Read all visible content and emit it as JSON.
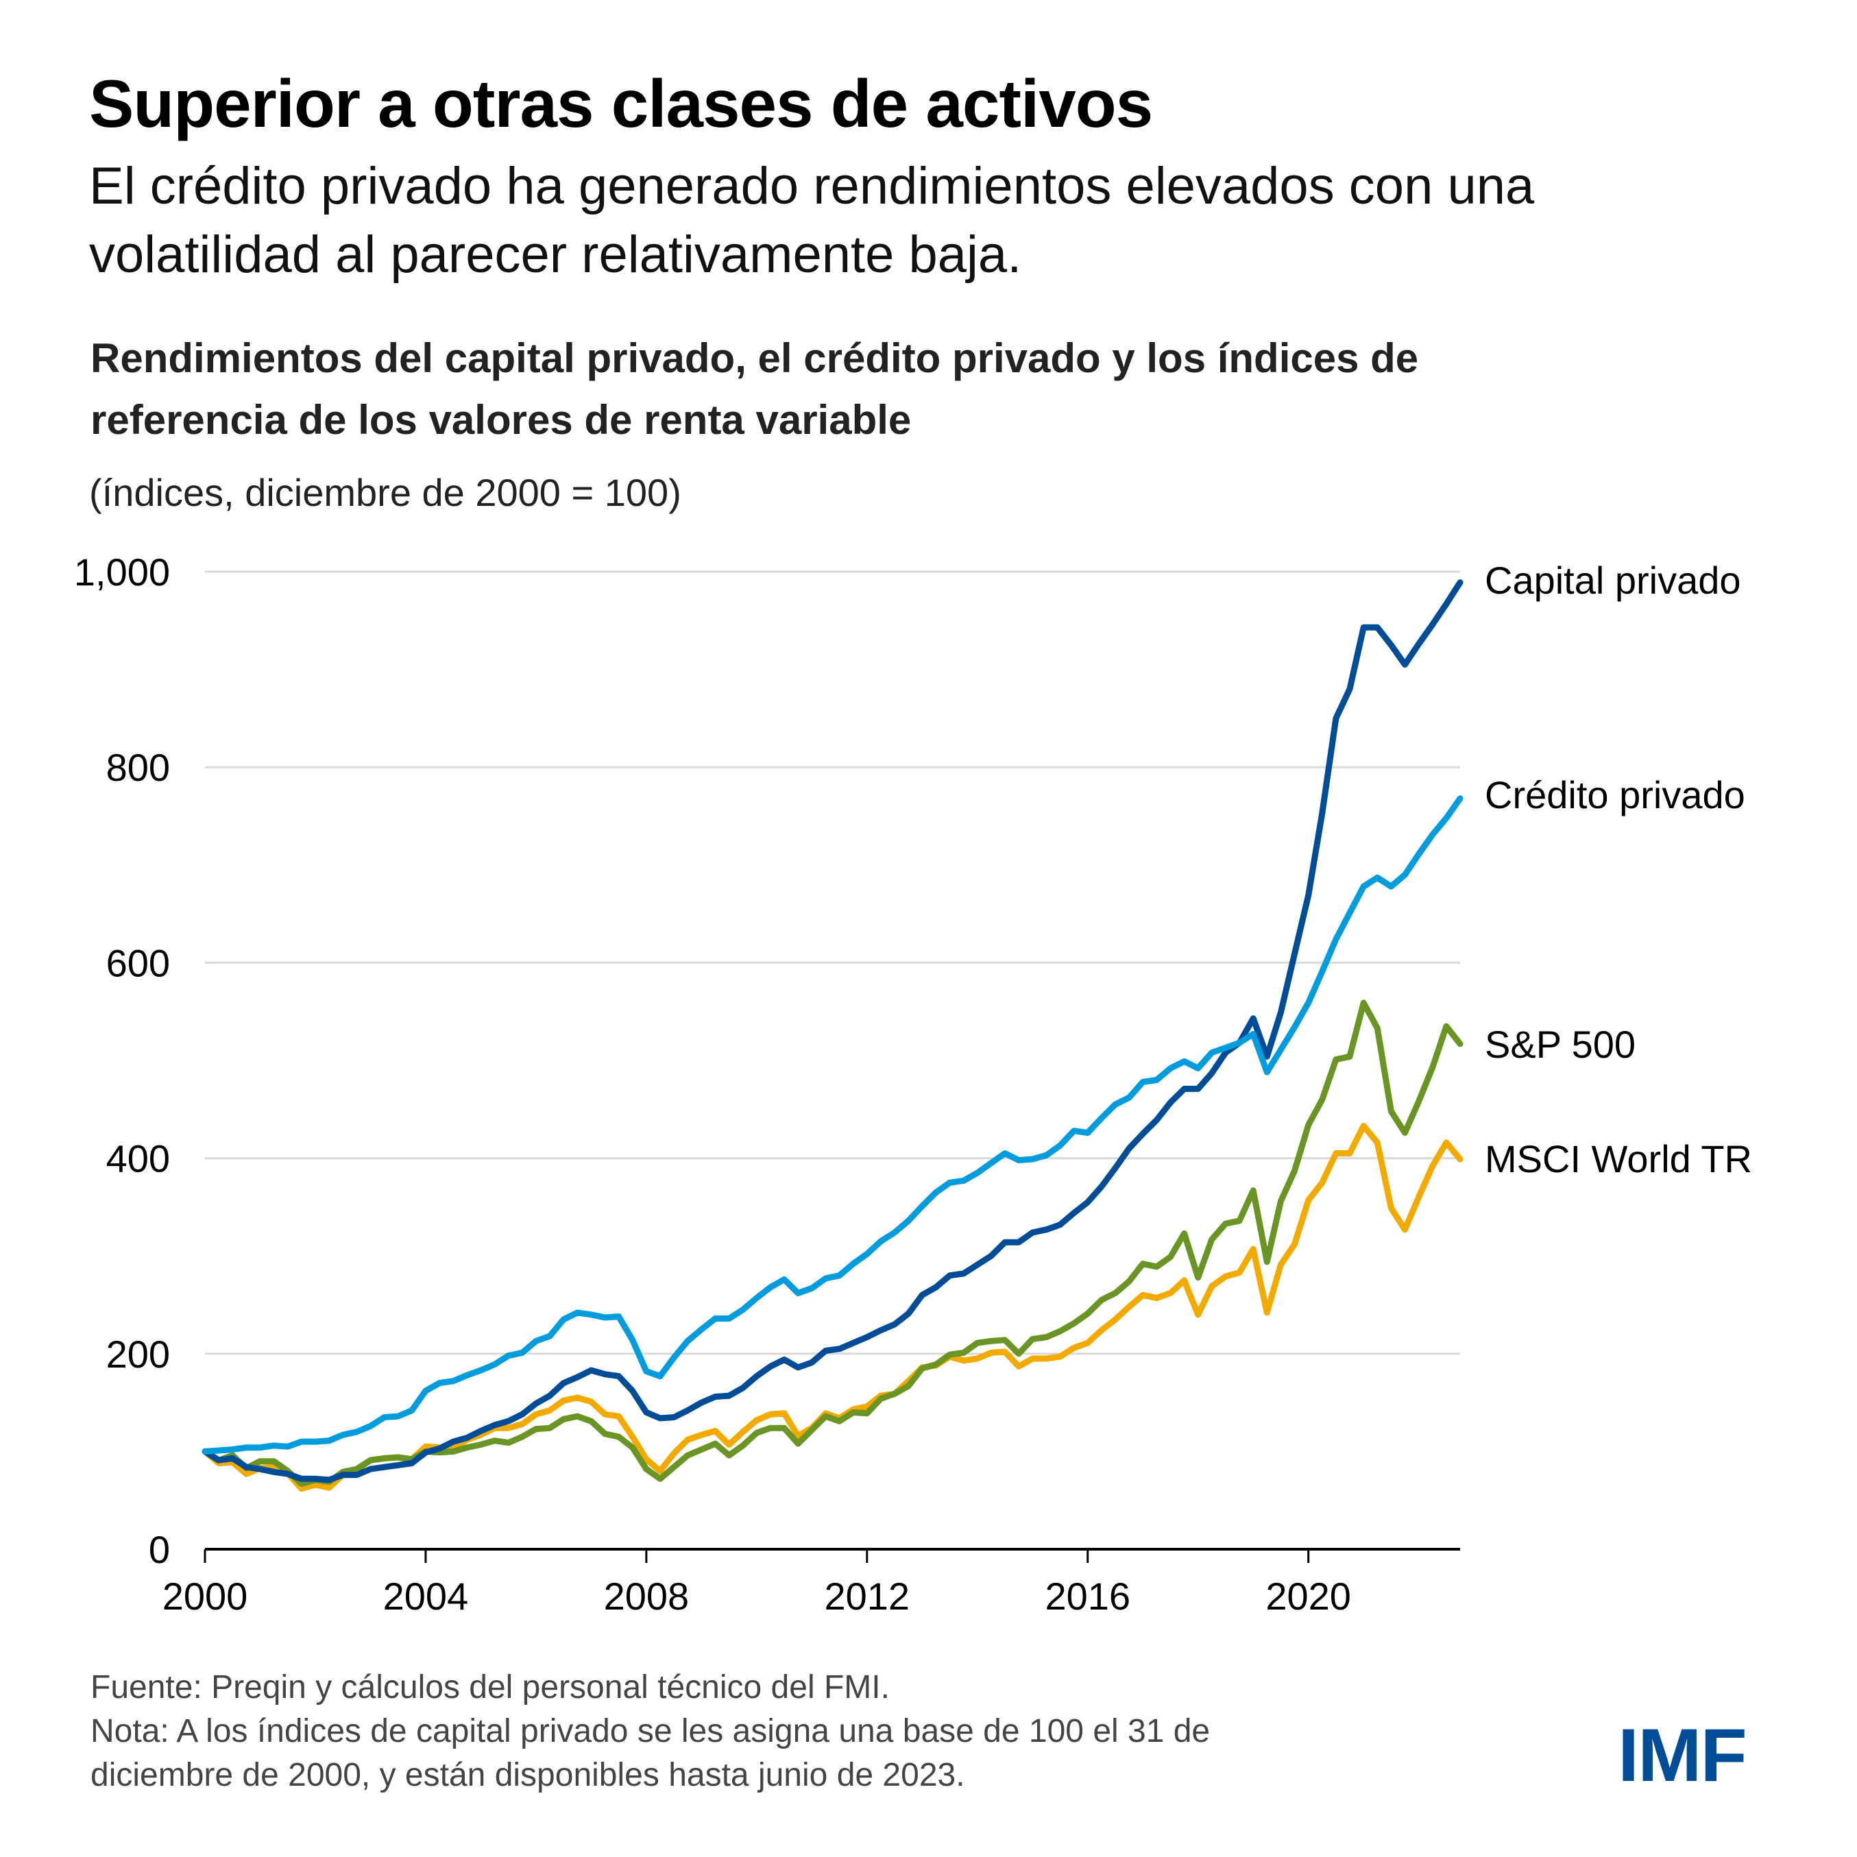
{
  "header": {
    "title": "Superior a otras clases de activos",
    "subtitle_lines": [
      "El crédito privado ha generado rendimientos elevados con una",
      "volatilidad al parecer relativamente baja."
    ]
  },
  "footer": {
    "source": "Fuente: Preqin y cálculos del personal técnico del FMI.",
    "note_lines": [
      "Nota: A los índices de capital privado se les asigna una base de 100 el 31 de",
      "diciembre de 2000, y están disponibles hasta junio de 2023."
    ],
    "logo": "IMF",
    "logo_color": "#004C97"
  },
  "chart_data": {
    "type": "line",
    "title_lines": [
      "Rendimientos del capital privado, el crédito privado y los índices de",
      "referencia de los valores de renta variable"
    ],
    "units": "(índices, diciembre de 2000 = 100)",
    "xlabel": "",
    "ylabel": "",
    "xlim": [
      2000,
      2022.75
    ],
    "ylim": [
      0,
      1000
    ],
    "grid": "horizontal",
    "legend": "inline-right",
    "x_ticks": [
      2000,
      2004,
      2008,
      2012,
      2016,
      2020
    ],
    "x_tick_labels": [
      "2000",
      "2004",
      "2008",
      "2012",
      "2016",
      "2020"
    ],
    "y_ticks": [
      0,
      200,
      400,
      600,
      800,
      1000
    ],
    "y_tick_labels": [
      "0",
      "200",
      "400",
      "600",
      "800",
      "1,000"
    ],
    "x_start": 2000,
    "x_step": 0.25,
    "series": [
      {
        "name": "Capital privado",
        "color": "#004C97",
        "values": [
          100,
          91,
          93,
          84,
          82,
          79,
          77,
          72,
          72,
          71,
          76,
          76,
          82,
          84,
          86,
          88,
          99,
          103,
          110,
          114,
          121,
          127,
          131,
          138,
          149,
          157,
          170,
          176,
          183,
          179,
          177,
          162,
          140,
          134,
          135,
          142,
          150,
          156,
          157,
          165,
          177,
          187,
          194,
          186,
          191,
          203,
          205,
          211,
          217,
          224,
          230,
          241,
          260,
          268,
          280,
          282,
          291,
          300,
          314,
          314,
          324,
          327,
          332,
          344,
          355,
          371,
          390,
          410,
          425,
          439,
          457,
          471,
          471,
          487,
          508,
          518,
          543,
          504,
          549,
          609,
          669,
          753,
          850,
          880,
          943,
          943,
          925,
          905,
          926,
          946,
          967,
          989
        ]
      },
      {
        "name": "Crédito privado",
        "color": "#009CDE",
        "values": [
          100,
          101,
          102,
          104,
          104,
          106,
          105,
          110,
          110,
          111,
          117,
          120,
          126,
          135,
          136,
          142,
          162,
          170,
          172,
          178,
          183,
          189,
          198,
          201,
          213,
          218,
          235,
          242,
          240,
          237,
          238,
          214,
          182,
          177,
          196,
          213,
          225,
          236,
          236,
          245,
          257,
          268,
          276,
          262,
          267,
          277,
          280,
          292,
          302,
          315,
          324,
          336,
          351,
          365,
          375,
          377,
          385,
          395,
          405,
          398,
          399,
          403,
          413,
          428,
          426,
          441,
          455,
          462,
          478,
          480,
          492,
          499,
          492,
          508,
          513,
          518,
          527,
          488,
          511,
          534,
          559,
          591,
          624,
          651,
          678,
          687,
          678,
          690,
          711,
          731,
          748,
          768
        ]
      },
      {
        "name": "S&P 500",
        "color": "#6A9424",
        "values": [
          100,
          91,
          96,
          83,
          90,
          90,
          80,
          67,
          71,
          69,
          79,
          82,
          91,
          93,
          94,
          92,
          100,
          99,
          100,
          104,
          107,
          111,
          109,
          115,
          123,
          124,
          133,
          136,
          131,
          118,
          115,
          104,
          82,
          72,
          84,
          96,
          102,
          108,
          96,
          106,
          119,
          124,
          124,
          108,
          122,
          136,
          131,
          140,
          139,
          154,
          159,
          167,
          185,
          189,
          199,
          201,
          211,
          213,
          214,
          200,
          215,
          217,
          223,
          231,
          241,
          255,
          262,
          274,
          292,
          289,
          299,
          323,
          278,
          317,
          333,
          336,
          367,
          294,
          356,
          387,
          434,
          460,
          501,
          504,
          559,
          533,
          448,
          426,
          458,
          493,
          535,
          517
        ]
      },
      {
        "name": "MSCI World TR",
        "color": "#F2AA00",
        "values": [
          100,
          88,
          89,
          77,
          83,
          84,
          78,
          62,
          66,
          63,
          76,
          81,
          91,
          93,
          94,
          92,
          105,
          104,
          103,
          112,
          117,
          124,
          124,
          128,
          138,
          142,
          152,
          155,
          151,
          138,
          136,
          115,
          92,
          80,
          98,
          112,
          117,
          121,
          107,
          120,
          132,
          138,
          139,
          116,
          124,
          139,
          134,
          143,
          146,
          157,
          159,
          172,
          186,
          188,
          197,
          193,
          195,
          201,
          202,
          187,
          195,
          195,
          197,
          206,
          211,
          224,
          235,
          248,
          260,
          257,
          262,
          275,
          240,
          269,
          279,
          283,
          307,
          242,
          291,
          312,
          357,
          375,
          405,
          405,
          433,
          416,
          349,
          327,
          360,
          392,
          416,
          399
        ]
      }
    ]
  }
}
